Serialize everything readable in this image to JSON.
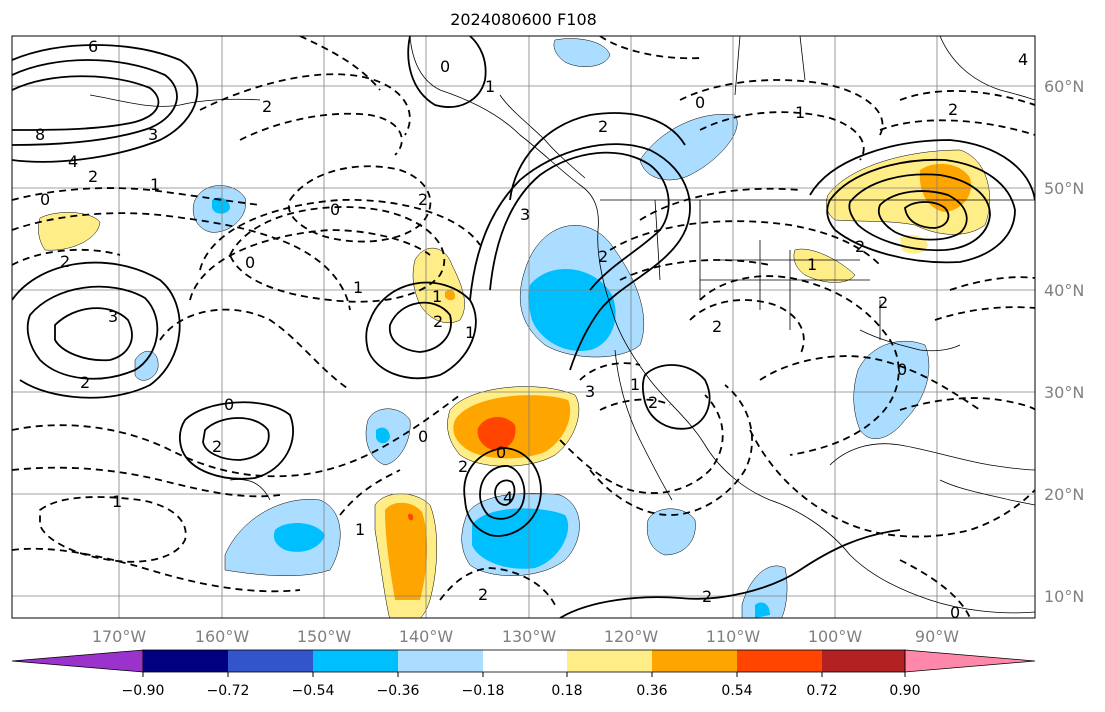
{
  "title": "2024080600 F108",
  "lat_labels": [
    "60°N",
    "50°N",
    "40°N",
    "30°N",
    "20°N",
    "10°N"
  ],
  "lon_labels": [
    "170°W",
    "160°W",
    "150°W",
    "140°W",
    "130°W",
    "120°W",
    "110°W",
    "100°W",
    "90°W"
  ],
  "colorbar": {
    "colors": [
      "#9933cc",
      "#000080",
      "#3355cc",
      "#00bfff",
      "#aaddff",
      "#ffffff",
      "#ffee88",
      "#ffa500",
      "#ff4500",
      "#b22222",
      "#ff88aa"
    ],
    "labels": [
      "−0.90",
      "−0.72",
      "−0.54",
      "−0.36",
      "−0.18",
      "0.18",
      "0.36",
      "0.54",
      "0.72",
      "0.90"
    ]
  },
  "contour_labels": [
    "6",
    "8",
    "4",
    "2",
    "0",
    "3",
    "2",
    "3",
    "2",
    "0",
    "1",
    "2",
    "2",
    "1",
    "0",
    "1",
    "0",
    "2",
    "1",
    "2",
    "1",
    "0",
    "1",
    "2",
    "3",
    "2",
    "0",
    "2",
    "1",
    "0",
    "4",
    "2",
    "1",
    "2",
    "3",
    "2",
    "2",
    "0",
    "1",
    "2",
    "1",
    "0",
    "2",
    "0",
    "4",
    "2"
  ]
}
